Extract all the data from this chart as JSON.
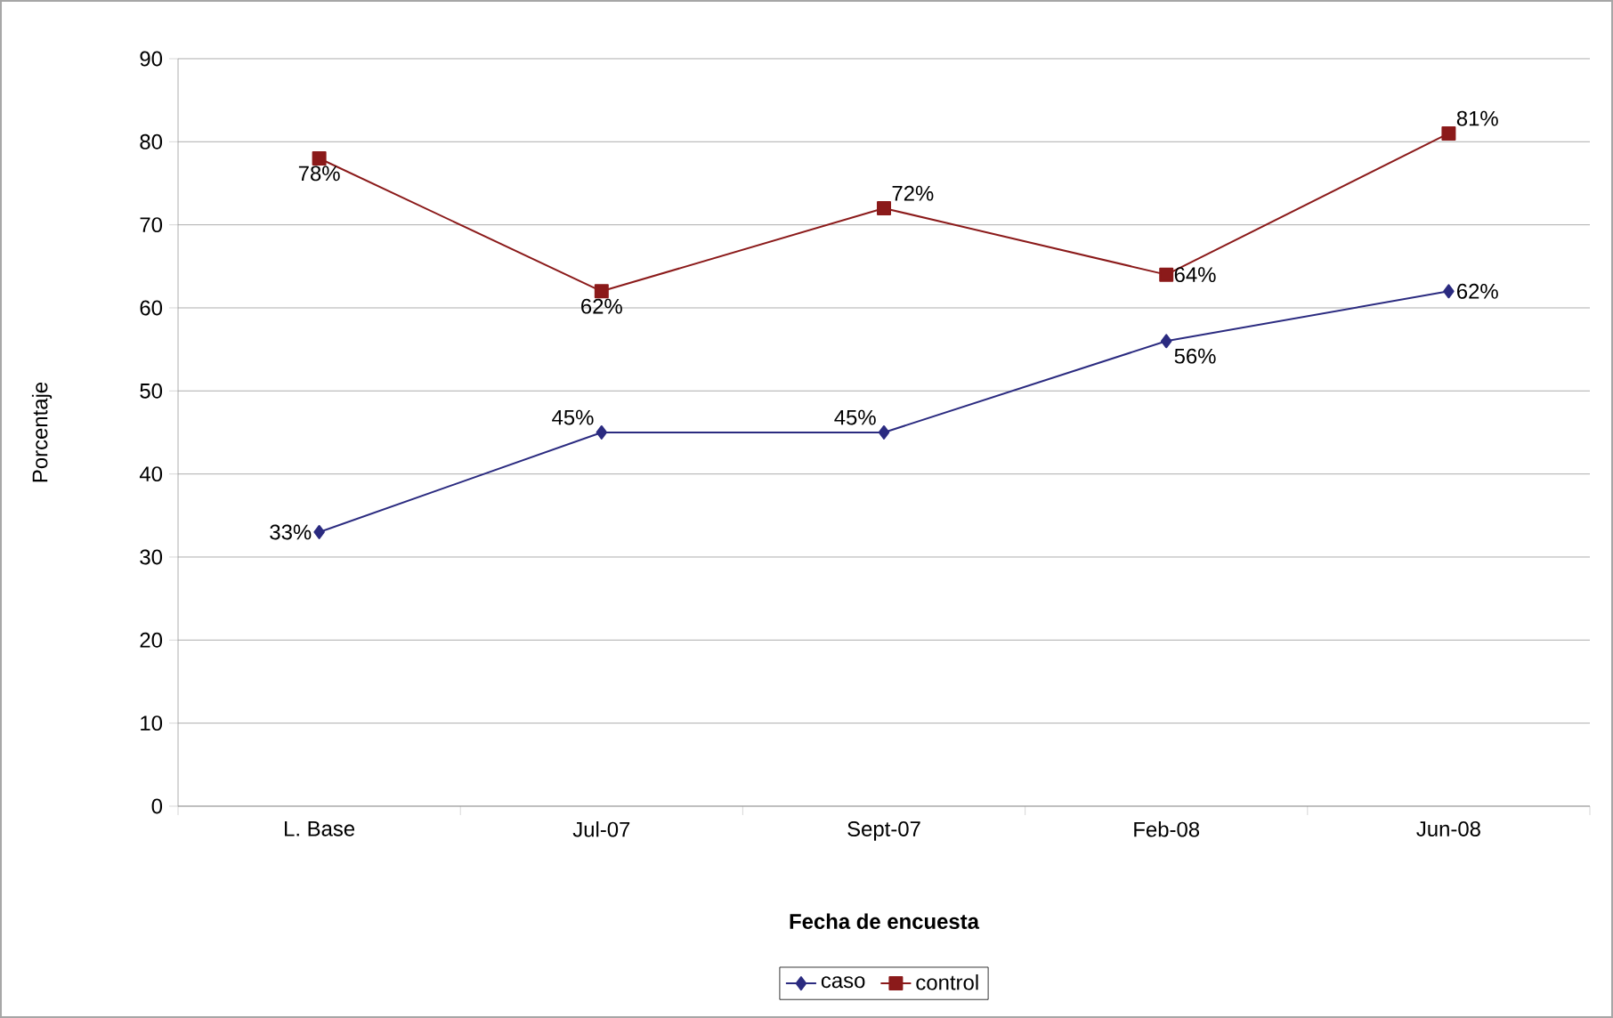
{
  "chart_data": {
    "type": "line",
    "xlabel": "Fecha de encuesta",
    "ylabel": "Porcentaje",
    "categories": [
      "L. Base",
      "Jul-07",
      "Sept-07",
      "Feb-08",
      "Jun-08"
    ],
    "series": [
      {
        "name": "caso",
        "color": "#2b2b80",
        "marker": "diamond",
        "values": [
          33,
          45,
          45,
          56,
          62
        ],
        "value_labels": [
          "33%",
          "45%",
          "45%",
          "56%",
          "62%"
        ]
      },
      {
        "name": "control",
        "color": "#8b1a1a",
        "marker": "square",
        "values": [
          78,
          62,
          72,
          64,
          81
        ],
        "value_labels": [
          "78%",
          "62%",
          "72%",
          "64%",
          "81%"
        ]
      }
    ],
    "ylim": [
      0,
      90
    ],
    "yticks": [
      0,
      10,
      20,
      30,
      40,
      50,
      60,
      70,
      80,
      90
    ],
    "grid": "y",
    "legend": "bottom"
  }
}
